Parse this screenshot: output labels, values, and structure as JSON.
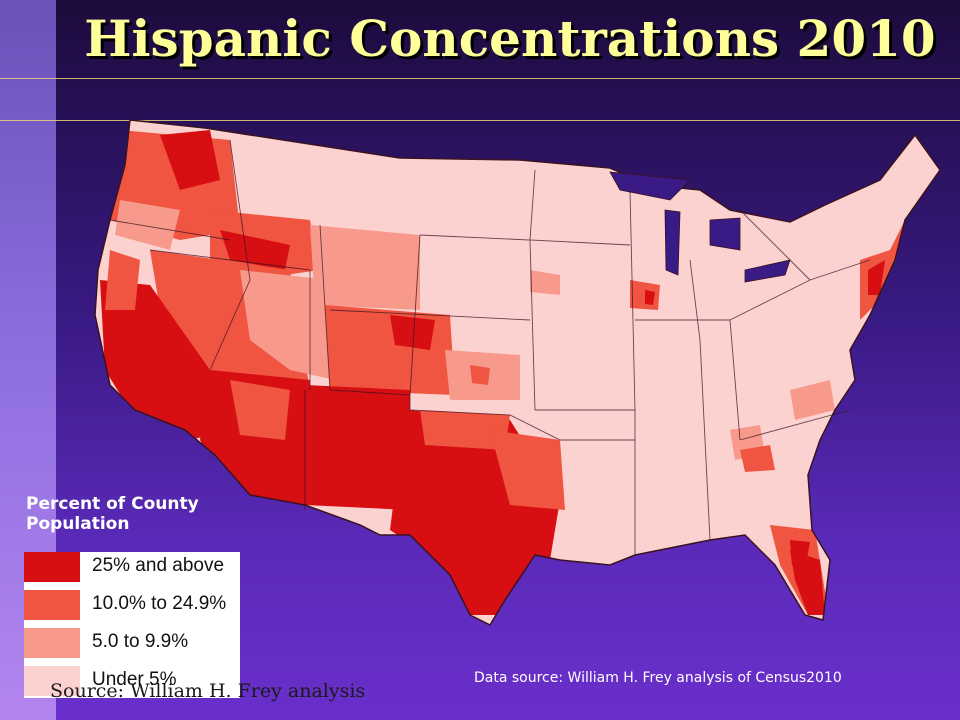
{
  "slide": {
    "title": "Hispanic Concentrations 2010",
    "colors": {
      "title": "#ffff9a",
      "background_top": "#1d0b3c",
      "background_bottom": "#6a2fcb",
      "rule": "#e8d27a"
    }
  },
  "legend": {
    "title_line1": "Percent of County",
    "title_line2": "Population",
    "items": [
      {
        "label": "25% and above",
        "color": "#d70f12"
      },
      {
        "label": "10.0% to 24.9%",
        "color": "#ef5540"
      },
      {
        "label": "5.0 to 9.9%",
        "color": "#f79a8c"
      },
      {
        "label": "Under 5%",
        "color": "#fcd2d0"
      }
    ]
  },
  "map": {
    "subject": "Hispanic share of county population, 2010",
    "regions": [
      {
        "name": "Southwest border",
        "category": "25% and above"
      },
      {
        "name": "Central California",
        "category": "25% and above"
      },
      {
        "name": "Florida south",
        "category": "25% and above"
      },
      {
        "name": "Great Basin / Mountain West",
        "category": "10.0% to 24.9%"
      },
      {
        "name": "Pacific Northwest",
        "category": "10.0% to 24.9%"
      },
      {
        "name": "Plains / Midwest",
        "category": "Under 5%"
      },
      {
        "name": "Appalachia / Southeast",
        "category": "Under 5%"
      },
      {
        "name": "Northeast",
        "category": "Under 5%"
      }
    ]
  },
  "sources": {
    "left": "Source: William H. Frey analysis",
    "right": "Data source: William H. Frey analysis of Census2010"
  }
}
